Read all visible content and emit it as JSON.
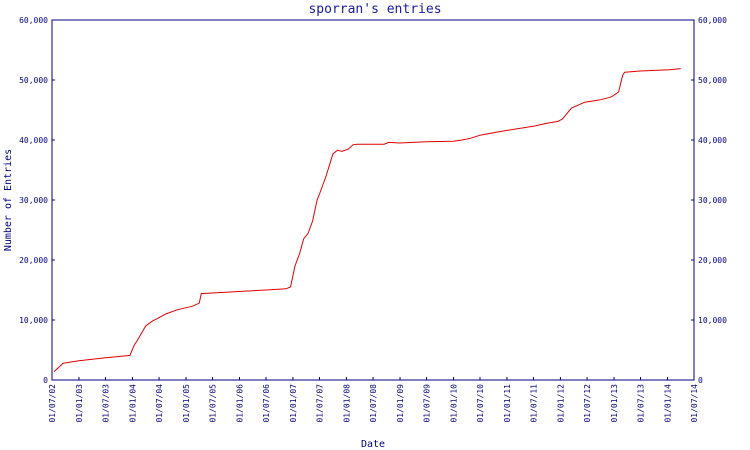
{
  "chart_data": {
    "type": "line",
    "title": "sporran's entries",
    "xlabel": "Date",
    "ylabel": "Number of Entries",
    "ylim": [
      0,
      60000
    ],
    "xlim": [
      "2002-07-01",
      "2014-07-01"
    ],
    "y_ticks": [
      0,
      10000,
      20000,
      30000,
      40000,
      50000,
      60000
    ],
    "y_tick_labels": [
      "0",
      "10,000",
      "20,000",
      "30,000",
      "40,000",
      "50,000",
      "60,000"
    ],
    "x_ticks": [
      "2002-07-01",
      "2003-01-01",
      "2003-07-01",
      "2004-01-01",
      "2004-07-01",
      "2005-01-01",
      "2005-07-01",
      "2006-01-01",
      "2006-07-01",
      "2007-01-01",
      "2007-07-01",
      "2008-01-01",
      "2008-07-01",
      "2009-01-01",
      "2009-07-01",
      "2010-01-01",
      "2010-07-01",
      "2011-01-01",
      "2011-07-01",
      "2012-01-01",
      "2012-07-01",
      "2013-01-01",
      "2013-07-01",
      "2014-01-01",
      "2014-07-01"
    ],
    "x_tick_labels": [
      "01/07/02",
      "01/01/03",
      "01/07/03",
      "01/01/04",
      "01/07/04",
      "01/01/05",
      "01/07/05",
      "01/01/06",
      "01/07/06",
      "01/01/07",
      "01/07/07",
      "01/01/08",
      "01/07/08",
      "01/01/09",
      "01/07/09",
      "01/01/10",
      "01/07/10",
      "01/01/11",
      "01/07/11",
      "01/01/12",
      "01/07/12",
      "01/01/13",
      "01/07/13",
      "01/01/14",
      "01/07/14"
    ],
    "grid": false,
    "colors": {
      "line": "#e00000",
      "axis": "#000080",
      "title": "#1a1aa6"
    },
    "series": [
      {
        "x": [
          "2002-07-15",
          "2002-09-15",
          "2003-01-01",
          "2003-07-01",
          "2003-12-15",
          "2004-01-15",
          "2004-02-01",
          "2004-04-01",
          "2004-05-15",
          "2004-07-01",
          "2004-08-15",
          "2004-11-01",
          "2005-02-15",
          "2005-04-01",
          "2005-04-15",
          "2006-07-01",
          "2006-11-15",
          "2006-12-15",
          "2007-01-15",
          "2007-02-15",
          "2007-03-15",
          "2007-04-15",
          "2007-05-15",
          "2007-06-15",
          "2007-07-01",
          "2007-08-15",
          "2007-10-01",
          "2007-11-01",
          "2007-12-01",
          "2008-01-15",
          "2008-02-15",
          "2008-03-15",
          "2008-04-15",
          "2008-09-15",
          "2008-10-15",
          "2009-01-01",
          "2009-04-01",
          "2009-07-01",
          "2010-01-01",
          "2010-03-01",
          "2010-05-01",
          "2010-07-01",
          "2010-10-01",
          "2011-01-01",
          "2011-07-01",
          "2011-10-01",
          "2011-12-15",
          "2012-01-15",
          "2012-03-15",
          "2012-06-15",
          "2012-10-01",
          "2012-12-15",
          "2013-02-01",
          "2013-03-01",
          "2013-03-15",
          "2013-07-01",
          "2014-01-15",
          "2014-04-01"
        ],
        "y": [
          1400,
          2800,
          3200,
          3700,
          4100,
          5900,
          6500,
          9000,
          9800,
          10400,
          11000,
          11700,
          12300,
          12800,
          14400,
          15000,
          15200,
          15500,
          19000,
          21000,
          23500,
          24500,
          26500,
          30000,
          31000,
          34000,
          37700,
          38300,
          38100,
          38500,
          39200,
          39300,
          39300,
          39300,
          39600,
          39500,
          39600,
          39700,
          39800,
          40000,
          40300,
          40800,
          41200,
          41600,
          42300,
          42800,
          43100,
          43500,
          45300,
          46300,
          46700,
          47200,
          48000,
          50800,
          51300,
          51500,
          51700,
          51900
        ]
      }
    ]
  }
}
